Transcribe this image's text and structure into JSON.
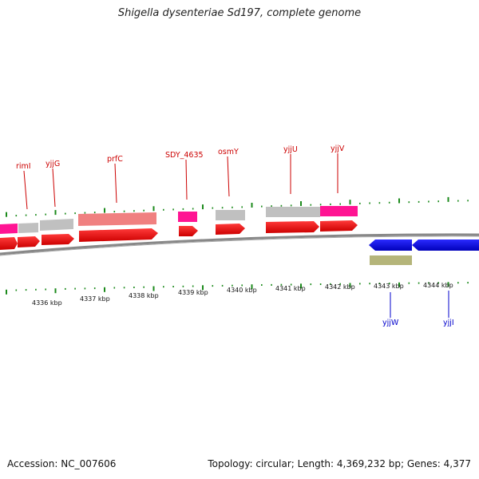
{
  "title": "Shigella dysenteriae Sd197, complete genome",
  "footer": {
    "accession": "Accession: NC_007606",
    "summary": "Topology: circular; Length: 4,369,232 bp; Genes: 4,377"
  },
  "colors": {
    "forward_cds": "#ff0000",
    "reverse_cds": "#0000ff",
    "tick_green": "#1b8a1b",
    "label_fwd": "#cc0000",
    "label_rev": "#0000cc",
    "backbone": "#808080",
    "gray_feature": "#c0c0c0",
    "pink_feature": "#ff1493",
    "salmon_feature": "#f08080",
    "olive_feature": "#b5b57a"
  },
  "kbp_labels": [
    "4336 kbp",
    "4337 kbp",
    "4338 kbp",
    "4339 kbp",
    "4340 kbp",
    "4341 kbp",
    "4342 kbp",
    "4343 kbp",
    "4344 kbp"
  ],
  "gene_labels_top": [
    "rimI",
    "yjjG",
    "prfC",
    "SDY_4635",
    "osmY",
    "yjjU",
    "yjjV"
  ],
  "gene_labels_bottom": [
    "yjjW",
    "yjjI"
  ]
}
